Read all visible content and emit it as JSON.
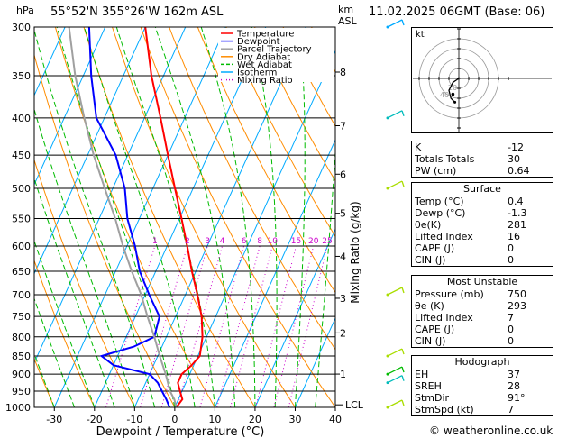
{
  "header": {
    "pressure_unit": "hPa",
    "location": "55°52'N  355°26'W  162m  ASL",
    "km_unit": "km",
    "asl_label": "ASL",
    "datetime": "11.02.2025  06GMT  (Base: 06)"
  },
  "chart_data": {
    "type": "skew-t",
    "xlabel": "Dewpoint / Temperature (°C)",
    "y_right_label": "Mixing Ratio (g/kg)",
    "temperature_ticks": [
      -30,
      -20,
      -10,
      0,
      10,
      20,
      30,
      40
    ],
    "pressure_levels": [
      300,
      350,
      400,
      450,
      500,
      550,
      600,
      650,
      700,
      750,
      800,
      850,
      900,
      950,
      1000
    ],
    "km_ticks": [
      {
        "p": 346,
        "label": "8"
      },
      {
        "p": 410,
        "label": "7"
      },
      {
        "p": 478,
        "label": "6"
      },
      {
        "p": 541,
        "label": "5"
      },
      {
        "p": 620,
        "label": "4"
      },
      {
        "p": 708,
        "label": "3"
      },
      {
        "p": 790,
        "label": "2"
      },
      {
        "p": 900,
        "label": "1"
      }
    ],
    "lcl": {
      "p": 992,
      "label": "LCL"
    },
    "mixing_ratio_labels": [
      "1",
      "2",
      "3",
      "4",
      "6",
      "8",
      "10",
      "15",
      "20",
      "25"
    ],
    "mixing_ratio_values": [
      1,
      2,
      3,
      4,
      6,
      8,
      10,
      15,
      20,
      25
    ],
    "legend": [
      {
        "name": "Temperature",
        "color": "#ff0000"
      },
      {
        "name": "Dewpoint",
        "color": "#0000ff"
      },
      {
        "name": "Parcel Trajectory",
        "color": "#a0a0a0"
      },
      {
        "name": "Dry Adiabat",
        "color": "#ff8c00"
      },
      {
        "name": "Wet Adiabat",
        "color": "#00bb00"
      },
      {
        "name": "Isotherm",
        "color": "#00aaff"
      },
      {
        "name": "Mixing Ratio",
        "color": "#cc00cc"
      }
    ],
    "series": [
      {
        "name": "Temperature",
        "points": [
          [
            1000,
            0.4
          ],
          [
            975,
            1
          ],
          [
            950,
            -0.5
          ],
          [
            925,
            -2
          ],
          [
            900,
            -2
          ],
          [
            875,
            -0.5
          ],
          [
            850,
            0.5
          ],
          [
            800,
            -1
          ],
          [
            750,
            -3.5
          ],
          [
            700,
            -7
          ],
          [
            650,
            -11
          ],
          [
            600,
            -15
          ],
          [
            550,
            -19.5
          ],
          [
            500,
            -24.5
          ],
          [
            450,
            -30
          ],
          [
            400,
            -36
          ],
          [
            350,
            -43
          ],
          [
            300,
            -50
          ]
        ]
      },
      {
        "name": "Dewpoint",
        "points": [
          [
            1000,
            -1.3
          ],
          [
            975,
            -3
          ],
          [
            950,
            -5
          ],
          [
            925,
            -7
          ],
          [
            900,
            -10
          ],
          [
            875,
            -20
          ],
          [
            850,
            -24
          ],
          [
            825,
            -17
          ],
          [
            800,
            -13
          ],
          [
            750,
            -14
          ],
          [
            700,
            -19
          ],
          [
            650,
            -24
          ],
          [
            600,
            -28
          ],
          [
            550,
            -33
          ],
          [
            500,
            -37
          ],
          [
            450,
            -43
          ],
          [
            400,
            -52
          ],
          [
            350,
            -58
          ],
          [
            300,
            -64
          ]
        ]
      },
      {
        "name": "Parcel Trajectory",
        "points": [
          [
            1000,
            0.4
          ],
          [
            975,
            -1
          ],
          [
            950,
            -3
          ],
          [
            900,
            -6
          ],
          [
            850,
            -9.5
          ],
          [
            800,
            -13
          ],
          [
            750,
            -17
          ],
          [
            700,
            -21
          ],
          [
            650,
            -26
          ],
          [
            600,
            -31
          ],
          [
            550,
            -36
          ],
          [
            500,
            -42
          ],
          [
            450,
            -48.5
          ],
          [
            400,
            -55
          ],
          [
            350,
            -62
          ],
          [
            300,
            -69
          ]
        ]
      }
    ],
    "wind_barbs": [
      {
        "p": 300,
        "color": "#00aaff"
      },
      {
        "p": 400,
        "color": "#00bbbb"
      },
      {
        "p": 500,
        "color": "#aadd00"
      },
      {
        "p": 700,
        "color": "#aadd00"
      },
      {
        "p": 850,
        "color": "#aadd00"
      },
      {
        "p": 900,
        "color": "#00bb00"
      },
      {
        "p": 925,
        "color": "#00bbbb"
      },
      {
        "p": 1000,
        "color": "#aadd00"
      }
    ],
    "hodograph": {
      "label": "kt",
      "ring_labels": [
        "20",
        "40"
      ],
      "trace": [
        [
          0,
          0
        ],
        [
          -3,
          -2
        ],
        [
          -5,
          -6
        ],
        [
          -4,
          -10
        ],
        [
          -2,
          -12
        ]
      ],
      "storm": [
        -3,
        -8
      ]
    }
  },
  "indices": {
    "rows": [
      {
        "label": "K",
        "value": "-12"
      },
      {
        "label": "Totals Totals",
        "value": "30"
      },
      {
        "label": "PW (cm)",
        "value": "0.64"
      }
    ]
  },
  "surface": {
    "title": "Surface",
    "rows": [
      {
        "label": "Temp (°C)",
        "value": "0.4"
      },
      {
        "label": "Dewp (°C)",
        "value": "-1.3"
      },
      {
        "label": "θe(K)",
        "value": "281"
      },
      {
        "label": "Lifted Index",
        "value": "16"
      },
      {
        "label": "CAPE (J)",
        "value": "0"
      },
      {
        "label": "CIN (J)",
        "value": "0"
      }
    ]
  },
  "unstable": {
    "title": "Most Unstable",
    "rows": [
      {
        "label": "Pressure (mb)",
        "value": "750"
      },
      {
        "label": "θe (K)",
        "value": "293"
      },
      {
        "label": "Lifted Index",
        "value": "7"
      },
      {
        "label": "CAPE (J)",
        "value": "0"
      },
      {
        "label": "CIN (J)",
        "value": "0"
      }
    ]
  },
  "hodo_table": {
    "title": "Hodograph",
    "rows": [
      {
        "label": "EH",
        "value": "37"
      },
      {
        "label": "SREH",
        "value": "28"
      },
      {
        "label": "StmDir",
        "value": "91°"
      },
      {
        "label": "StmSpd (kt)",
        "value": "7"
      }
    ]
  },
  "footer": {
    "copyright": "© weatheronline.co.uk"
  }
}
